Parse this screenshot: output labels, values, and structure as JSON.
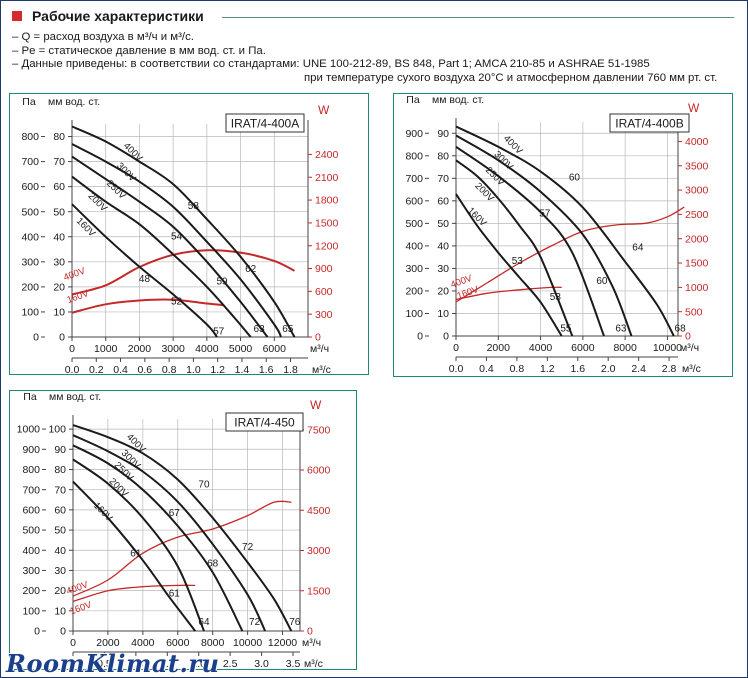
{
  "header": {
    "title": "Рабочие характеристики"
  },
  "notes": [
    "– Q = расход воздуха в м³/ч и м³/с.",
    "– Pe = статическое давление в мм вод. ст. и Па.",
    "– Данные приведены: в соответствии со стандартами: UNE 100-212-89, BS 848, Part 1; AMCA 210-85 и ASHRAE 51-1985",
    "при температуре сухого воздуха 20°C и атмосферном давлении 760 мм рт. ст."
  ],
  "watermark": "RoomKlimat.ru",
  "colors": {
    "frame": "#1b3a6b",
    "panel_border": "#1a8a7a",
    "curve": "#1a1a1a",
    "power": "#c62828",
    "accent": "#d52a2a"
  },
  "chart_data": [
    {
      "type": "line",
      "title": "IRAT/4-400A",
      "pa_label": "Па",
      "mm_label": "мм вод. ст.",
      "w_label": "W",
      "unit_q_h": "м³/ч",
      "unit_q_s": "м³/с",
      "xlim": [
        0,
        7000
      ],
      "ylim": [
        0,
        85
      ],
      "wlim": [
        0,
        2800
      ],
      "y_ticks": [
        0,
        10,
        20,
        30,
        40,
        50,
        60,
        70,
        80
      ],
      "pa_ticks": [
        0,
        100,
        200,
        300,
        400,
        500,
        600,
        700,
        800
      ],
      "w_ticks": [
        0,
        300,
        600,
        900,
        1200,
        1500,
        1800,
        2100,
        2400
      ],
      "x_ticks": [
        0,
        1000,
        2000,
        3000,
        4000,
        5000,
        6000
      ],
      "x2_ticks": [
        "0.0",
        "0.2",
        "0.4",
        "0.6",
        "0.8",
        "1.0",
        "1.2",
        "1.4",
        "1.6",
        "1.8"
      ],
      "x2_max": 1.944,
      "series": [
        {
          "name": "400V",
          "x": [
            0,
            1000,
            2000,
            3000,
            4000,
            5000,
            6000,
            6600
          ],
          "y": [
            84,
            78,
            70,
            61,
            47,
            32,
            14,
            0
          ]
        },
        {
          "name": "300V",
          "x": [
            0,
            1000,
            2000,
            3000,
            4000,
            5000,
            6000,
            6200
          ],
          "y": [
            77,
            70,
            62,
            52,
            38,
            23,
            5,
            0
          ]
        },
        {
          "name": "250V",
          "x": [
            0,
            1000,
            2000,
            3000,
            4000,
            5000,
            5800
          ],
          "y": [
            72,
            63,
            54,
            44,
            30,
            14,
            0
          ]
        },
        {
          "name": "200V",
          "x": [
            0,
            1000,
            2000,
            3000,
            4000,
            4800,
            5300
          ],
          "y": [
            64,
            54,
            45,
            33,
            20,
            8,
            0
          ]
        },
        {
          "name": "160V",
          "x": [
            0,
            1000,
            2000,
            3000,
            4000,
            4300
          ],
          "y": [
            53,
            40,
            28,
            17,
            5,
            0
          ]
        }
      ],
      "power_series": [
        {
          "name": "400V",
          "x": [
            0,
            1000,
            2000,
            3000,
            4000,
            5000,
            6000,
            6600
          ],
          "w": [
            560,
            680,
            920,
            1080,
            1140,
            1110,
            1000,
            870
          ]
        },
        {
          "name": "160V",
          "x": [
            0,
            1000,
            2000,
            3000,
            4000,
            4500
          ],
          "w": [
            320,
            430,
            480,
            490,
            440,
            420
          ]
        }
      ],
      "annotations": [
        {
          "text": "400V",
          "x": 1750,
          "y": 73
        },
        {
          "text": "300V",
          "x": 1550,
          "y": 65
        },
        {
          "text": "250V",
          "x": 1250,
          "y": 58
        },
        {
          "text": "200V",
          "x": 700,
          "y": 53
        },
        {
          "text": "160V",
          "x": 350,
          "y": 43
        },
        {
          "text": "58",
          "x": 3600,
          "y": 51
        },
        {
          "text": "54",
          "x": 3100,
          "y": 39
        },
        {
          "text": "48",
          "x": 2150,
          "y": 22
        },
        {
          "text": "62",
          "x": 5300,
          "y": 26
        },
        {
          "text": "59",
          "x": 4450,
          "y": 21
        },
        {
          "text": "52",
          "x": 3100,
          "y": 13
        },
        {
          "text": "57",
          "x": 4350,
          "y": 1
        },
        {
          "text": "63",
          "x": 5550,
          "y": 2
        },
        {
          "text": "65",
          "x": 6400,
          "y": 2
        },
        {
          "text": "400V",
          "x": 100,
          "y": 24,
          "red": true
        },
        {
          "text": "160V",
          "x": 200,
          "y": 15,
          "red": true
        }
      ]
    },
    {
      "type": "line",
      "title": "IRAT/4-400B",
      "pa_label": "Па",
      "mm_label": "мм вод. ст.",
      "w_label": "W",
      "unit_q_h": "м³/ч",
      "unit_q_s": "м³/с",
      "xlim": [
        0,
        10500
      ],
      "ylim": [
        0,
        95
      ],
      "wlim": [
        0,
        4400
      ],
      "y_ticks": [
        0,
        10,
        20,
        30,
        40,
        50,
        60,
        70,
        80,
        90
      ],
      "pa_ticks": [
        0,
        100,
        200,
        300,
        400,
        500,
        600,
        700,
        800,
        900
      ],
      "w_ticks": [
        0,
        500,
        1000,
        1500,
        2000,
        2500,
        3000,
        3500,
        4000
      ],
      "x_ticks": [
        0,
        2000,
        4000,
        6000,
        8000,
        10000
      ],
      "x2_ticks": [
        "0.0",
        "0.4",
        "0.8",
        "1.2",
        "1.6",
        "2.0",
        "2.4",
        "2.8"
      ],
      "x2_max": 2.917,
      "series": [
        {
          "name": "400V",
          "x": [
            0,
            2000,
            4000,
            6000,
            8000,
            9500,
            10300
          ],
          "y": [
            93,
            84,
            73,
            57,
            33,
            14,
            0
          ]
        },
        {
          "name": "300V",
          "x": [
            0,
            2000,
            4000,
            6000,
            7400,
            8300
          ],
          "y": [
            89,
            78,
            64,
            45,
            22,
            0
          ]
        },
        {
          "name": "250V",
          "x": [
            0,
            2000,
            4000,
            5500,
            7000
          ],
          "y": [
            84,
            71,
            55,
            37,
            0
          ]
        },
        {
          "name": "200V",
          "x": [
            0,
            1000,
            2000,
            3000,
            4000,
            5500
          ],
          "y": [
            78,
            71,
            61,
            49,
            35,
            0
          ]
        },
        {
          "name": "160V",
          "x": [
            0,
            1000,
            2000,
            3000,
            4000,
            5000
          ],
          "y": [
            63,
            49,
            37,
            26,
            15,
            0
          ]
        }
      ],
      "power_series": [
        {
          "name": "400V",
          "x": [
            0,
            1500,
            3000,
            4500,
            6000,
            7500,
            9000,
            10000,
            10800
          ],
          "w": [
            700,
            1100,
            1500,
            1850,
            2150,
            2280,
            2320,
            2450,
            2650
          ]
        },
        {
          "name": "160V",
          "x": [
            0,
            1500,
            3000,
            4500,
            5000
          ],
          "w": [
            750,
            880,
            950,
            1000,
            1000
          ]
        }
      ],
      "annotations": [
        {
          "text": "400V",
          "x": 2600,
          "y": 84
        },
        {
          "text": "300V",
          "x": 2150,
          "y": 77
        },
        {
          "text": "250V",
          "x": 1750,
          "y": 70
        },
        {
          "text": "200V",
          "x": 1250,
          "y": 63
        },
        {
          "text": "160V",
          "x": 900,
          "y": 52
        },
        {
          "text": "60",
          "x": 5600,
          "y": 69
        },
        {
          "text": "57",
          "x": 4200,
          "y": 53
        },
        {
          "text": "53",
          "x": 2900,
          "y": 32
        },
        {
          "text": "64",
          "x": 8600,
          "y": 38
        },
        {
          "text": "60",
          "x": 6900,
          "y": 23
        },
        {
          "text": "53",
          "x": 4700,
          "y": 16
        },
        {
          "text": "55",
          "x": 5200,
          "y": 2
        },
        {
          "text": "63",
          "x": 7800,
          "y": 2
        },
        {
          "text": "68",
          "x": 10600,
          "y": 2
        },
        {
          "text": "400V",
          "x": 300,
          "y": 23,
          "red": true
        },
        {
          "text": "160V",
          "x": 600,
          "y": 18,
          "red": true
        }
      ]
    },
    {
      "type": "line",
      "title": "IRAT/4-450",
      "pa_label": "Па",
      "mm_label": "мм вод. ст.",
      "w_label": "W",
      "unit_q_h": "м³/ч",
      "unit_q_s": "м³/с",
      "xlim": [
        0,
        13000
      ],
      "ylim": [
        0,
        105
      ],
      "wlim": [
        0,
        7900
      ],
      "y_ticks": [
        0,
        10,
        20,
        30,
        40,
        50,
        60,
        70,
        80,
        90,
        100
      ],
      "pa_ticks": [
        0,
        100,
        200,
        300,
        400,
        500,
        600,
        700,
        800,
        900,
        1000
      ],
      "w_ticks": [
        0,
        1500,
        3000,
        4500,
        6000,
        7500
      ],
      "x_ticks": [
        0,
        2000,
        4000,
        6000,
        8000,
        10000,
        12000
      ],
      "x2_ticks": [
        "0",
        "0.5",
        "1.0",
        "1.5",
        "2.0",
        "2.5",
        "3.0",
        "3.5"
      ],
      "x2_max": 3.611,
      "series": [
        {
          "name": "400V",
          "x": [
            0,
            2000,
            4000,
            6000,
            8000,
            10000,
            11500,
            12500
          ],
          "y": [
            102,
            96,
            88,
            75,
            56,
            34,
            16,
            0
          ]
        },
        {
          "name": "300V",
          "x": [
            0,
            2000,
            4000,
            6000,
            8000,
            10000,
            11000
          ],
          "y": [
            97,
            89,
            79,
            64,
            43,
            18,
            0
          ]
        },
        {
          "name": "250V",
          "x": [
            0,
            2000,
            4000,
            6000,
            8000,
            9700
          ],
          "y": [
            92,
            83,
            70,
            52,
            29,
            0
          ]
        },
        {
          "name": "200V",
          "x": [
            0,
            2000,
            4000,
            6000,
            7500
          ],
          "y": [
            85,
            73,
            56,
            32,
            0
          ]
        },
        {
          "name": "160V",
          "x": [
            0,
            2000,
            4000,
            5500,
            7000
          ],
          "y": [
            74,
            56,
            35,
            17,
            0
          ]
        }
      ],
      "power_series": [
        {
          "name": "400V",
          "x": [
            0,
            2000,
            4000,
            6000,
            8000,
            10000,
            11500,
            12500
          ],
          "w": [
            1300,
            1900,
            2900,
            3500,
            3800,
            4300,
            4800,
            4800
          ]
        },
        {
          "name": "160V",
          "x": [
            0,
            2000,
            4000,
            6000,
            7000
          ],
          "w": [
            1100,
            1500,
            1650,
            1700,
            1700
          ]
        }
      ],
      "annotations": [
        {
          "text": "400V",
          "x": 3500,
          "y": 92
        },
        {
          "text": "300V",
          "x": 3200,
          "y": 84
        },
        {
          "text": "250V",
          "x": 2800,
          "y": 78
        },
        {
          "text": "200V",
          "x": 2500,
          "y": 70
        },
        {
          "text": "160V",
          "x": 1600,
          "y": 58
        },
        {
          "text": "70",
          "x": 7500,
          "y": 71
        },
        {
          "text": "67",
          "x": 5800,
          "y": 57
        },
        {
          "text": "61",
          "x": 3600,
          "y": 37
        },
        {
          "text": "72",
          "x": 10000,
          "y": 40
        },
        {
          "text": "68",
          "x": 8000,
          "y": 32
        },
        {
          "text": "61",
          "x": 5800,
          "y": 17
        },
        {
          "text": "64",
          "x": 7500,
          "y": 3
        },
        {
          "text": "72",
          "x": 10400,
          "y": 3
        },
        {
          "text": "76",
          "x": 12700,
          "y": 3
        },
        {
          "text": "400V",
          "x": 300,
          "y": 20,
          "red": true
        },
        {
          "text": "160V",
          "x": 500,
          "y": 10,
          "red": true
        }
      ]
    }
  ]
}
